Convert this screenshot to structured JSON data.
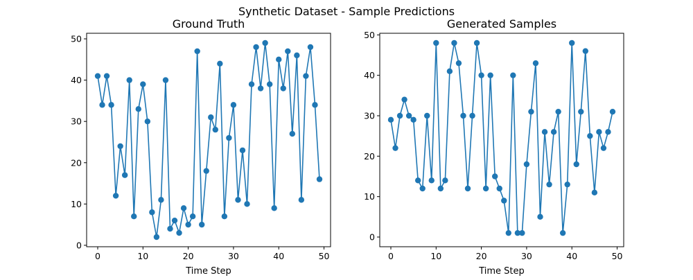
{
  "figure": {
    "suptitle": "Synthetic Dataset - Sample Predictions"
  },
  "chart_data": [
    {
      "type": "line",
      "title": "Ground Truth",
      "xlabel": "Time Step",
      "ylabel": "",
      "xlim": [
        -2.45,
        51.45
      ],
      "ylim": [
        -0.35,
        51.35
      ],
      "xticks": [
        0,
        10,
        20,
        30,
        40,
        50
      ],
      "yticks": [
        0,
        10,
        20,
        30,
        40,
        50
      ],
      "grid": false,
      "marker": "circle",
      "color": "#1f77b4",
      "series": [
        {
          "x": [
            0,
            1,
            2,
            3,
            4,
            5,
            6,
            7,
            8,
            9,
            10,
            11,
            12,
            13,
            14,
            15,
            16,
            17,
            18,
            19,
            20,
            21,
            22,
            23,
            24,
            25,
            26,
            27,
            28,
            29,
            30,
            31,
            32,
            33,
            34,
            35,
            36,
            37,
            38,
            39,
            40,
            41,
            42,
            43,
            44,
            45,
            46,
            47,
            48,
            49
          ],
          "values": [
            41,
            34,
            41,
            34,
            12,
            24,
            17,
            40,
            7,
            33,
            39,
            30,
            8,
            2,
            11,
            40,
            4,
            6,
            3,
            9,
            5,
            7,
            47,
            5,
            18,
            31,
            28,
            44,
            7,
            26,
            34,
            11,
            23,
            10,
            39,
            48,
            38,
            49,
            39,
            9,
            45,
            38,
            47,
            27,
            46,
            11,
            41,
            48,
            34,
            16
          ]
        }
      ]
    },
    {
      "type": "line",
      "title": "Generated Samples",
      "xlabel": "Time Step",
      "ylabel": "",
      "xlim": [
        -2.45,
        51.45
      ],
      "ylim": [
        -2.4,
        50.4
      ],
      "xticks": [
        0,
        10,
        20,
        30,
        40,
        50
      ],
      "yticks": [
        0,
        10,
        20,
        30,
        40,
        50
      ],
      "grid": false,
      "marker": "circle",
      "color": "#1f77b4",
      "series": [
        {
          "x": [
            0,
            1,
            2,
            3,
            4,
            5,
            6,
            7,
            8,
            9,
            10,
            11,
            12,
            13,
            14,
            15,
            16,
            17,
            18,
            19,
            20,
            21,
            22,
            23,
            24,
            25,
            26,
            27,
            28,
            29,
            30,
            31,
            32,
            33,
            34,
            35,
            36,
            37,
            38,
            39,
            40,
            41,
            42,
            43,
            44,
            45,
            46,
            47,
            48,
            49
          ],
          "values": [
            29,
            22,
            30,
            34,
            30,
            29,
            14,
            12,
            30,
            14,
            48,
            12,
            14,
            41,
            48,
            43,
            30,
            12,
            30,
            48,
            40,
            12,
            40,
            15,
            12,
            9,
            1,
            40,
            1,
            1,
            18,
            31,
            43,
            5,
            26,
            13,
            26,
            31,
            1,
            13,
            48,
            18,
            31,
            46,
            25,
            11,
            26,
            22,
            26,
            31
          ]
        }
      ]
    }
  ]
}
